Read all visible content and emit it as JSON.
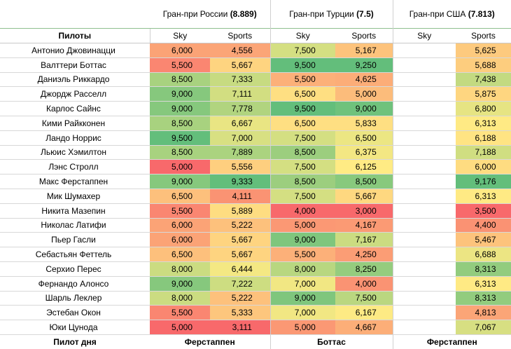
{
  "grand_prix": [
    {
      "label": "Гран-при России ",
      "rating_text": "(8.889)"
    },
    {
      "label": "Гран-при Турции ",
      "rating_text": "(7.5)"
    },
    {
      "label": "Гран-при США ",
      "rating_text": "(7.813)"
    }
  ],
  "pilots_header": "Пилоты",
  "sub_headers": {
    "sky": "Sky",
    "sports": "Sports"
  },
  "footer": {
    "label": "Пилот дня",
    "winners": [
      "Ферстаппен",
      "Боттас",
      "Ферстаппен"
    ]
  },
  "rows": [
    {
      "name": "Антонио Джовинацци",
      "values": [
        "6,000",
        "4,556",
        "7,500",
        "5,167",
        "",
        "5,625"
      ]
    },
    {
      "name": "Валттери Боттас",
      "values": [
        "5,500",
        "5,667",
        "9,500",
        "9,250",
        "",
        "5,688"
      ]
    },
    {
      "name": "Даниэль Риккардо",
      "values": [
        "8,500",
        "7,333",
        "5,500",
        "4,625",
        "",
        "7,438"
      ]
    },
    {
      "name": "Джордж Расселл",
      "values": [
        "9,000",
        "7,111",
        "6,500",
        "5,000",
        "",
        "5,875"
      ]
    },
    {
      "name": "Карлос Сайнс",
      "values": [
        "9,000",
        "7,778",
        "9,500",
        "9,000",
        "",
        "6,800"
      ]
    },
    {
      "name": "Кими Райкконен",
      "values": [
        "8,500",
        "6,667",
        "6,500",
        "5,833",
        "",
        "6,313"
      ]
    },
    {
      "name": "Ландо Норрис",
      "values": [
        "9,500",
        "7,000",
        "7,500",
        "6,500",
        "",
        "6,188"
      ]
    },
    {
      "name": "Льюис Хэмилтон",
      "values": [
        "8,500",
        "7,889",
        "8,500",
        "6,375",
        "",
        "7,188"
      ]
    },
    {
      "name": "Лэнс Стролл",
      "values": [
        "5,000",
        "5,556",
        "7,500",
        "6,125",
        "",
        "6,000"
      ]
    },
    {
      "name": "Макс Ферстаппен",
      "values": [
        "9,000",
        "9,333",
        "8,500",
        "8,500",
        "",
        "9,176"
      ]
    },
    {
      "name": "Мик Шумахер",
      "values": [
        "6,500",
        "4,111",
        "7,500",
        "5,667",
        "",
        "6,313"
      ]
    },
    {
      "name": "Никита Мазепин",
      "values": [
        "5,500",
        "5,889",
        "4,000",
        "3,000",
        "",
        "3,500"
      ]
    },
    {
      "name": "Николас Латифи",
      "values": [
        "6,000",
        "5,222",
        "5,000",
        "4,167",
        "",
        "4,400"
      ]
    },
    {
      "name": "Пьер Гасли",
      "values": [
        "6,000",
        "5,667",
        "9,000",
        "7,167",
        "",
        "5,467"
      ]
    },
    {
      "name": "Себастьян Феттель",
      "values": [
        "6,500",
        "5,667",
        "5,500",
        "4,250",
        "",
        "6,688"
      ]
    },
    {
      "name": "Серхио Перес",
      "values": [
        "8,000",
        "6,444",
        "8,000",
        "8,250",
        "",
        "8,313"
      ]
    },
    {
      "name": "Фернандо Алонсо",
      "values": [
        "9,000",
        "7,222",
        "7,000",
        "4,000",
        "",
        "6,313"
      ]
    },
    {
      "name": "Шарль Леклер",
      "values": [
        "8,000",
        "5,222",
        "9,000",
        "7,500",
        "",
        "8,313"
      ]
    },
    {
      "name": "Эстебан Окон",
      "values": [
        "5,500",
        "5,333",
        "7,000",
        "6,167",
        "",
        "4,813"
      ]
    },
    {
      "name": "Юки Цунода",
      "values": [
        "5,000",
        "3,111",
        "5,000",
        "4,667",
        "",
        "7,067"
      ]
    }
  ],
  "colors": {
    "scale_low": "#f8696b",
    "scale_mid": "#ffeb84",
    "scale_high": "#63be7b",
    "grid_line": "#d8d8d8",
    "header_line": "#8fbf8f"
  }
}
